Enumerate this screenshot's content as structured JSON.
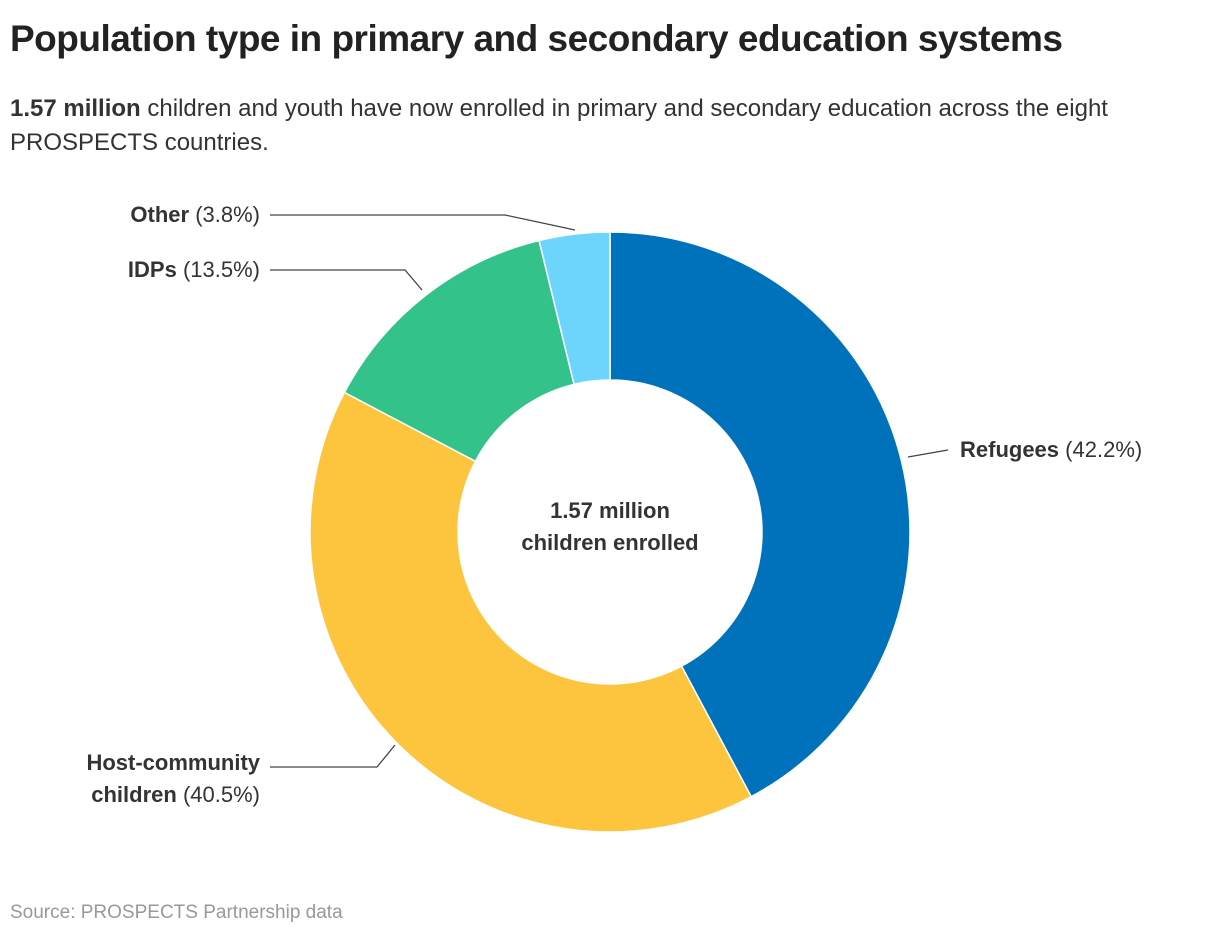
{
  "chart_data": {
    "type": "donut",
    "title": "Population type in primary and secondary education systems",
    "subtitle_highlight": "1.57 million",
    "subtitle": "children and youth have now enrolled in primary and secondary education across the eight PROSPECTS countries.",
    "center_label": "1.57 million children enrolled",
    "categories": [
      "Refugees",
      "Host-community children",
      "IDPs",
      "Other"
    ],
    "values": [
      42.2,
      40.5,
      13.5,
      3.8
    ],
    "value_labels": [
      "(42.2%)",
      "(40.5%)",
      "(13.5%)",
      "(3.8%)"
    ],
    "colors": [
      "#0072bc",
      "#fdc43e",
      "#33c28a",
      "#6dd5fb"
    ],
    "source": "Source: PROSPECTS Partnership data"
  }
}
